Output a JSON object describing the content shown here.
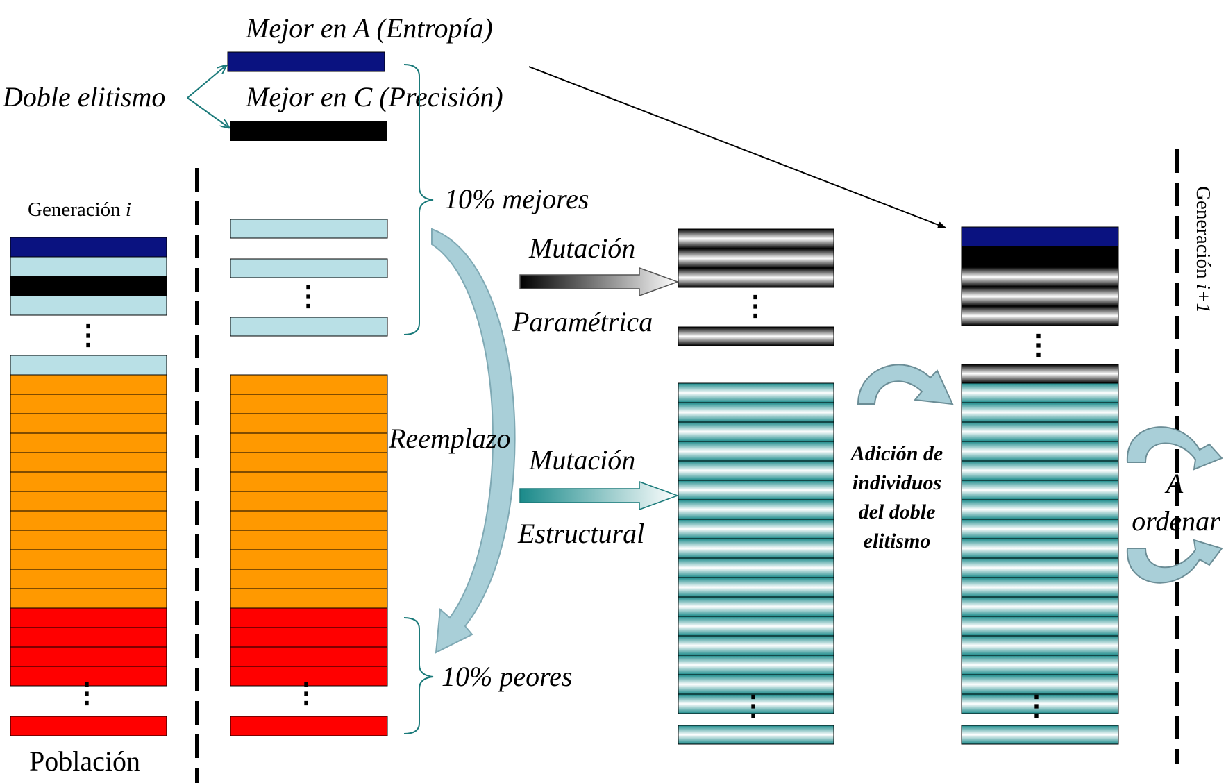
{
  "labels": {
    "best_a": "Mejor en A (Entropía)",
    "best_c": "Mejor en C (Precisión)",
    "double_elitism": "Doble elitismo",
    "generation_i_prefix": "Generación ",
    "generation_i_var": "i",
    "generation_next_prefix": "Generación ",
    "generation_next_var": "i+1",
    "top10": "10% mejores",
    "bottom10": "10% peores",
    "replacement": "Reemplazo",
    "mutation_param_1": "Mutación",
    "mutation_param_2": "Paramétrica",
    "mutation_struct_1": "Mutación",
    "mutation_struct_2": "Estructural",
    "addition_1": "Adición de",
    "addition_2": "individuos",
    "addition_3": "del doble",
    "addition_4": "elitismo",
    "sort_1": "A",
    "sort_2": "ordenar",
    "population": "Población",
    "ellipsis": "⋮"
  },
  "colors": {
    "navy": "#0a1280",
    "black": "#000000",
    "lightblue": "#b9e0e6",
    "orange": "#ff9900",
    "red": "#ff0000",
    "teal": "#1a8a8a",
    "arrow_fill": "#a9cfd8"
  },
  "counts": {
    "population_orange_rows": 12,
    "population_red_rows": 4,
    "mutated_structural_rows": 17,
    "next_generation_structural_rows": 17
  }
}
